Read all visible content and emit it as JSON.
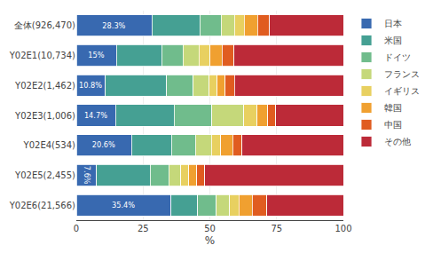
{
  "chart_data": {
    "type": "bar",
    "orientation": "horizontal",
    "stacked": true,
    "categories": [
      "Y02E6(21,566)",
      "Y02E5(2,455)",
      "Y02E4(534)",
      "Y02E3(1,006)",
      "Y02E2(1,462)",
      "Y02E1(10,734)",
      "全体(926,470)"
    ],
    "series": [
      {
        "name": "日本",
        "color": "#3869b0",
        "values": [
          35.4,
          7.6,
          20.6,
          14.7,
          10.8,
          15.0,
          28.3
        ],
        "value_labels": [
          "35.4%",
          "7.6%",
          "20.6%",
          "14.7%",
          "10.8%",
          "15%",
          "28.3%"
        ]
      },
      {
        "name": "米国",
        "color": "#45a093",
        "values": [
          10.0,
          20.0,
          15.0,
          22.0,
          23.0,
          17.0,
          18.0
        ]
      },
      {
        "name": "ドイツ",
        "color": "#70bc8c",
        "values": [
          7.0,
          7.0,
          9.0,
          14.0,
          10.0,
          8.0,
          8.0
        ]
      },
      {
        "name": "フランス",
        "color": "#c5d87a",
        "values": [
          5.0,
          4.5,
          6.0,
          12.0,
          6.0,
          6.0,
          5.0
        ]
      },
      {
        "name": "イギリス",
        "color": "#e8d060",
        "values": [
          3.5,
          3.0,
          3.5,
          5.0,
          3.0,
          4.0,
          3.5
        ]
      },
      {
        "name": "韓国",
        "color": "#f0a030",
        "values": [
          5.0,
          3.0,
          4.5,
          4.0,
          3.0,
          4.5,
          5.0
        ]
      },
      {
        "name": "中国",
        "color": "#e05c20",
        "values": [
          5.5,
          3.0,
          3.5,
          3.0,
          3.5,
          4.5,
          4.5
        ]
      },
      {
        "name": "その他",
        "color": "#bc2a38",
        "values": [
          28.6,
          51.9,
          37.9,
          25.3,
          40.7,
          41.0,
          27.7
        ]
      }
    ],
    "xlabel": "%",
    "xlim": [
      0,
      100
    ],
    "xticks": [
      0,
      25,
      50,
      75,
      100
    ],
    "grid": true,
    "legend": "right"
  }
}
